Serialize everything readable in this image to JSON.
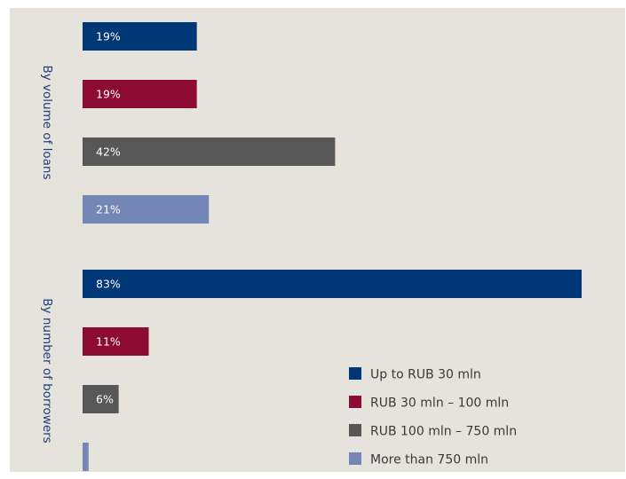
{
  "chart_data": {
    "type": "bar",
    "orientation": "horizontal",
    "groups": [
      "By volume of loans",
      "By number of borrowers"
    ],
    "series": [
      {
        "name": "Up to RUB 30 mln",
        "color": "#003776",
        "values": [
          19,
          83
        ]
      },
      {
        "name": "RUB 30 mln – 100 mln",
        "color": "#8c0a33",
        "values": [
          19,
          11
        ]
      },
      {
        "name": "RUB 100 mln – 750 mln",
        "color": "#575757",
        "values": [
          42,
          6
        ]
      },
      {
        "name": "More than 750 mln",
        "color": "#7486b6",
        "values": [
          21,
          1
        ]
      }
    ],
    "data_labels": [
      [
        "19%",
        "83%"
      ],
      [
        "19%",
        "11%"
      ],
      [
        "42%",
        "6%"
      ],
      [
        "21%",
        ""
      ]
    ],
    "legend_position": "bottom-right",
    "grid": false,
    "xlim": [
      0,
      83
    ]
  }
}
